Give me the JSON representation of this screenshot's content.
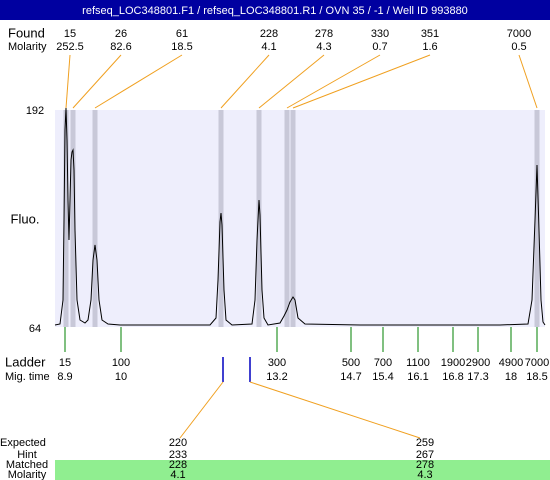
{
  "header": {
    "title": "refseq_LOC348801.F1 / refseq_LOC348801.R1 / OVN 35 / -1 / Well ID 993880"
  },
  "found": {
    "label": "Found",
    "molarity_label": "Molarity",
    "items": [
      {
        "size": 15,
        "molarity": 252.5
      },
      {
        "size": 26,
        "molarity": 82.6
      },
      {
        "size": 61,
        "molarity": 18.5
      },
      {
        "size": 228,
        "molarity": 4.1
      },
      {
        "size": 278,
        "molarity": 4.3
      },
      {
        "size": 330,
        "molarity": 0.7
      },
      {
        "size": 351,
        "molarity": 1.6
      },
      {
        "size": 7000,
        "molarity": 0.5
      }
    ]
  },
  "axis": {
    "top": 192,
    "bottom": 64,
    "label": "Fluo."
  },
  "ladder": {
    "label": "Ladder",
    "time_label": "Mig. time",
    "items": [
      {
        "size": 15,
        "time": 8.9
      },
      {
        "size": 100,
        "time": 10
      },
      {
        "size": 300,
        "time": 13.2
      },
      {
        "size": 500,
        "time": 14.7
      },
      {
        "size": 700,
        "time": 15.4
      },
      {
        "size": 1100,
        "time": 16.1
      },
      {
        "size": 1900,
        "time": 16.8
      },
      {
        "size": 2900,
        "time": 17.3
      },
      {
        "size": 4900,
        "time": 18
      },
      {
        "size": 7000,
        "time": 18.5
      }
    ]
  },
  "expected": {
    "label": "Expected",
    "hint_label": "Hint",
    "matched_label": "Matched",
    "molarity_label": "Molarity",
    "items": [
      {
        "expected": 220,
        "hint": 233,
        "matched": 228,
        "molarity": 4.1
      },
      {
        "expected": 259,
        "hint": 267,
        "matched": 278,
        "molarity": 4.3
      }
    ]
  }
}
